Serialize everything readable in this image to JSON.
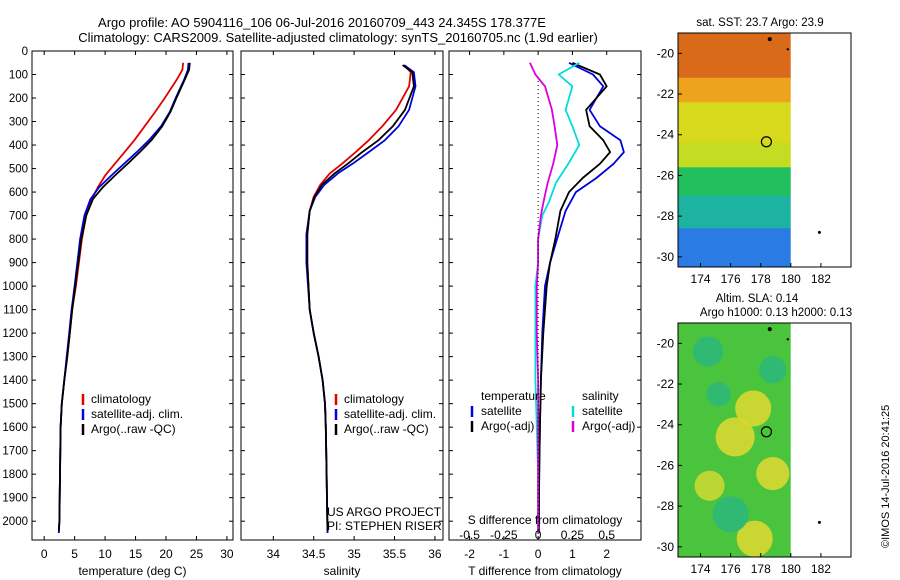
{
  "header": {
    "line1": "Argo profile: AO 5904116_106 06-Jul-2016 20160709_443 24.345S 178.377E",
    "line2": "Climatology: CARS2009. Satellite-adjusted climatology: synTS_20160705.nc (1.9d earlier)"
  },
  "colors": {
    "climatology": "#e00000",
    "satellite": "#0000dd",
    "argo": "#000000",
    "salinity_satellite": "#00dddd",
    "salinity_argo": "#dd00dd"
  },
  "chart_data": [
    {
      "id": "temperature",
      "type": "line",
      "xlabel": "temperature (deg C)",
      "xlim": [
        -2,
        31
      ],
      "xticks": [
        0,
        5,
        10,
        15,
        20,
        25,
        30
      ],
      "ylim": [
        2080,
        0
      ],
      "yticks": [
        0,
        100,
        200,
        300,
        400,
        500,
        600,
        700,
        800,
        900,
        1000,
        1100,
        1200,
        1300,
        1400,
        1500,
        1600,
        1700,
        1800,
        1900,
        2000
      ],
      "legend": [
        "climatology",
        "satellite-adj. clim.",
        "Argo(..raw -QC)"
      ],
      "series": [
        {
          "name": "climatology",
          "color_key": "climatology",
          "x": [
            22.8,
            22.7,
            21.8,
            19.8,
            18.2,
            16.5,
            14.8,
            13.2,
            11.6,
            10.0,
            8.8,
            7.8,
            6.9,
            6.2,
            5.2,
            4.6,
            4.2,
            3.8,
            3.3,
            2.9,
            2.7,
            2.6,
            2.5,
            2.4
          ],
          "y": [
            50,
            80,
            120,
            200,
            260,
            320,
            380,
            430,
            480,
            530,
            580,
            630,
            700,
            800,
            1000,
            1100,
            1200,
            1300,
            1400,
            1500,
            1600,
            1800,
            2000,
            2050
          ]
        },
        {
          "name": "satellite-adj. clim.",
          "color_key": "satellite",
          "x": [
            23.7,
            23.6,
            23.0,
            21.6,
            20.6,
            19.2,
            17.2,
            15.2,
            13.1,
            11.0,
            9.0,
            7.6,
            6.6,
            5.9,
            5.0,
            4.5,
            4.1,
            3.7,
            3.3,
            2.9,
            2.7,
            2.6,
            2.5,
            2.4
          ],
          "y": [
            50,
            80,
            120,
            200,
            260,
            320,
            380,
            430,
            480,
            530,
            580,
            630,
            700,
            800,
            1000,
            1100,
            1200,
            1300,
            1400,
            1500,
            1600,
            1800,
            2000,
            2050
          ]
        },
        {
          "name": "Argo(..raw -QC)",
          "color_key": "argo",
          "x": [
            23.9,
            23.8,
            23.1,
            21.7,
            20.7,
            19.4,
            17.6,
            15.7,
            13.7,
            11.6,
            9.6,
            8.0,
            6.9,
            6.1,
            5.1,
            4.6,
            4.2,
            3.8,
            3.3,
            2.9,
            2.7,
            2.6,
            2.5,
            2.4
          ],
          "y": [
            50,
            80,
            120,
            200,
            260,
            320,
            380,
            430,
            480,
            530,
            580,
            630,
            700,
            800,
            1000,
            1100,
            1200,
            1300,
            1400,
            1500,
            1600,
            1800,
            2000,
            2040
          ]
        }
      ]
    },
    {
      "id": "salinity",
      "type": "line",
      "xlabel": "salinity",
      "xlim": [
        33.6,
        36.1
      ],
      "xticks": [
        34,
        34.5,
        35,
        35.5,
        36
      ],
      "xticklabels": [
        "34",
        "34.5",
        "35",
        "35.5",
        "36"
      ],
      "ylim": [
        2080,
        0
      ],
      "legend": [
        "climatology",
        "satellite-adj. clim.",
        "Argo(..raw -QC)"
      ],
      "annotation": [
        "US ARGO PROJECT",
        "PI: STEPHEN RISER"
      ],
      "series": [
        {
          "name": "climatology",
          "color_key": "climatology",
          "x": [
            35.62,
            35.7,
            35.68,
            35.52,
            35.35,
            35.18,
            35.02,
            34.85,
            34.7,
            34.58,
            34.5,
            34.45,
            34.42,
            34.42,
            34.45,
            34.5,
            34.56,
            34.61,
            34.64,
            34.65,
            34.66,
            34.67
          ],
          "y": [
            60,
            90,
            150,
            250,
            320,
            380,
            430,
            480,
            520,
            570,
            620,
            680,
            780,
            900,
            1100,
            1200,
            1300,
            1400,
            1500,
            1600,
            1800,
            2050
          ]
        },
        {
          "name": "satellite-adj. clim.",
          "color_key": "satellite",
          "x": [
            35.62,
            35.74,
            35.76,
            35.68,
            35.55,
            35.38,
            35.18,
            34.98,
            34.8,
            34.63,
            34.52,
            34.45,
            34.41,
            34.41,
            34.45,
            34.5,
            34.56,
            34.61,
            34.64,
            34.65,
            34.66,
            34.67
          ],
          "y": [
            60,
            90,
            150,
            250,
            320,
            380,
            430,
            480,
            520,
            570,
            620,
            680,
            780,
            900,
            1100,
            1200,
            1300,
            1400,
            1500,
            1600,
            1800,
            2050
          ]
        },
        {
          "name": "Argo(..raw -QC)",
          "color_key": "argo",
          "x": [
            35.6,
            35.72,
            35.74,
            35.63,
            35.48,
            35.3,
            35.1,
            34.92,
            34.76,
            34.6,
            34.51,
            34.45,
            34.42,
            34.42,
            34.45,
            34.5,
            34.56,
            34.61,
            34.64,
            34.65,
            34.66,
            34.67
          ],
          "y": [
            60,
            90,
            150,
            250,
            320,
            380,
            430,
            480,
            520,
            570,
            620,
            680,
            780,
            900,
            1100,
            1200,
            1300,
            1400,
            1500,
            1600,
            1800,
            2040
          ]
        }
      ]
    },
    {
      "id": "difference",
      "type": "line",
      "xlabel": "T difference from climatology",
      "xlabel_top": "S difference from climatology",
      "xlim": [
        -2.6,
        3.0
      ],
      "xticks": [
        -2,
        -1,
        0,
        1,
        2
      ],
      "s_ticks": [
        -0.5,
        -0.25,
        0,
        0.25,
        0.5
      ],
      "s_ticklabels": [
        "-0.5",
        "-0.25",
        "0",
        "0.25",
        "0.5"
      ],
      "s_scale": 4,
      "ylim": [
        2080,
        0
      ],
      "legend": {
        "temperature_title": "temperature",
        "salinity_title": "salinity",
        "temperature": [
          "satellite",
          "Argo(-adj)"
        ],
        "salinity": [
          "satellite",
          "Argo(-adj)"
        ]
      },
      "series": [
        {
          "name": "satellite",
          "group": "temperature",
          "color_key": "satellite",
          "x": [
            0.9,
            1.6,
            1.9,
            1.5,
            1.8,
            2.4,
            2.5,
            2.2,
            1.7,
            1.1,
            0.8,
            0.55,
            0.35,
            0.2,
            0.12,
            0.08,
            0.05,
            0.03,
            0.02,
            0.02
          ],
          "y": [
            50,
            100,
            150,
            250,
            320,
            380,
            430,
            480,
            540,
            600,
            680,
            800,
            900,
            1000,
            1200,
            1400,
            1600,
            1800,
            2000,
            2050
          ]
        },
        {
          "name": "Argo(-adj)",
          "group": "temperature",
          "color_key": "argo",
          "x": [
            1.0,
            1.8,
            2.0,
            1.4,
            1.5,
            1.9,
            2.1,
            1.8,
            1.3,
            0.9,
            0.65,
            0.5,
            0.35,
            0.25,
            0.15,
            0.08,
            0.05,
            0.03,
            0.02,
            0.02
          ],
          "y": [
            50,
            100,
            150,
            250,
            320,
            380,
            430,
            480,
            540,
            600,
            680,
            800,
            900,
            1000,
            1200,
            1400,
            1600,
            1800,
            2000,
            2050
          ]
        },
        {
          "name": "satellite",
          "group": "salinity",
          "color_key": "salinity_satellite",
          "x": [
            0.3,
            0.15,
            0.25,
            0.2,
            0.25,
            0.3,
            0.22,
            0.13,
            0.08,
            0.03,
            0.0,
            0.0,
            -0.02,
            -0.02,
            -0.02,
            -0.01,
            0.0,
            0.0
          ],
          "y": [
            50,
            100,
            150,
            250,
            320,
            400,
            480,
            560,
            640,
            700,
            800,
            900,
            1000,
            1200,
            1400,
            1600,
            1800,
            2050
          ]
        },
        {
          "name": "Argo(-adj)",
          "group": "salinity",
          "color_key": "salinity_argo",
          "x": [
            -0.06,
            -0.02,
            0.05,
            0.1,
            0.12,
            0.14,
            0.11,
            0.07,
            0.04,
            0.02,
            0.0,
            0.0,
            -0.01,
            -0.01,
            0.0,
            0.0,
            0.0,
            0.0
          ],
          "y": [
            50,
            100,
            150,
            250,
            320,
            400,
            480,
            560,
            640,
            700,
            800,
            900,
            1000,
            1200,
            1400,
            1600,
            1800,
            2050
          ]
        }
      ]
    }
  ],
  "maps": [
    {
      "id": "sst",
      "title": "sat. SST: 23.7 Argo: 23.9",
      "xticks": [
        174,
        176,
        178,
        180,
        182
      ],
      "yticks": [
        -20,
        -22,
        -24,
        -26,
        -28,
        -30
      ],
      "xlim": [
        172.5,
        184
      ],
      "ylim": [
        -19,
        -30.5
      ],
      "data_lon_max": 180,
      "marker": {
        "lon": 178.377,
        "lat": -24.345
      },
      "bands": [
        {
          "lat_top": -19,
          "lat_bottom": -21.2,
          "color": "#d96a1a"
        },
        {
          "lat_top": -21.2,
          "lat_bottom": -22.4,
          "color": "#eda41c"
        },
        {
          "lat_top": -22.4,
          "lat_bottom": -24.4,
          "color": "#d8d81c"
        },
        {
          "lat_top": -24.4,
          "lat_bottom": -25.6,
          "color": "#c4dc22"
        },
        {
          "lat_top": -25.6,
          "lat_bottom": -27.0,
          "color": "#22c05c"
        },
        {
          "lat_top": -27.0,
          "lat_bottom": -28.6,
          "color": "#1cb4a0"
        },
        {
          "lat_top": -28.6,
          "lat_bottom": -30.5,
          "color": "#2a7ce4"
        }
      ]
    },
    {
      "id": "sla",
      "title": "Altim. SLA: 0.14",
      "subtitle": "Argo h1000: 0.13 h2000: 0.13",
      "xticks": [
        174,
        176,
        178,
        180,
        182
      ],
      "yticks": [
        -20,
        -22,
        -24,
        -26,
        -28,
        -30
      ],
      "xlim": [
        172.5,
        184
      ],
      "ylim": [
        -19,
        -30.5
      ],
      "data_lon_max": 180,
      "marker": {
        "lon": 178.377,
        "lat": -24.345
      },
      "background": "#4ac43c",
      "blobs": [
        {
          "lon": 177.5,
          "lat": -23.2,
          "rlon": 1.2,
          "rlat": 0.9,
          "color": "#d8d830"
        },
        {
          "lon": 176.3,
          "lat": -24.6,
          "rlon": 1.3,
          "rlat": 0.8,
          "color": "#d8d830"
        },
        {
          "lon": 178.8,
          "lat": -26.4,
          "rlon": 1.1,
          "rlat": 0.7,
          "color": "#d8d830"
        },
        {
          "lon": 174.6,
          "lat": -27.0,
          "rlon": 1.0,
          "rlat": 0.6,
          "color": "#c8d834"
        },
        {
          "lon": 177.6,
          "lat": -29.6,
          "rlon": 1.2,
          "rlat": 0.6,
          "color": "#d8d830"
        },
        {
          "lon": 174.5,
          "lat": -20.4,
          "rlon": 1.0,
          "rlat": 0.6,
          "color": "#2cb878"
        },
        {
          "lon": 178.8,
          "lat": -21.3,
          "rlon": 0.9,
          "rlat": 0.6,
          "color": "#2cb878"
        },
        {
          "lon": 175.2,
          "lat": -22.5,
          "rlon": 0.8,
          "rlat": 0.5,
          "color": "#2cb878"
        },
        {
          "lon": 176.0,
          "lat": -28.4,
          "rlon": 1.2,
          "rlat": 0.6,
          "color": "#2cb878"
        }
      ]
    }
  ],
  "stamp": "©IMOS 14-Jul-2016 20:41:25"
}
